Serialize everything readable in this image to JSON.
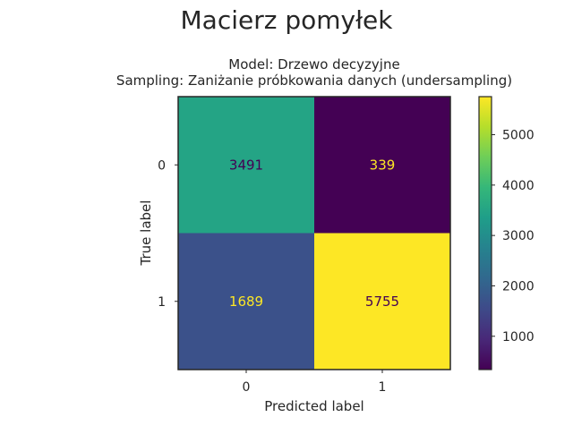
{
  "chart_data": {
    "type": "heatmap",
    "title": "Macierz pomyłek",
    "subtitle_lines": [
      "Model: Drzewo decyzyjne",
      "Sampling: Zaniżanie próbkowania danych (undersampling)"
    ],
    "xlabel": "Predicted label",
    "ylabel": "True label",
    "x_categories": [
      "0",
      "1"
    ],
    "y_categories": [
      "0",
      "1"
    ],
    "values": [
      [
        3491,
        339
      ],
      [
        1689,
        5755
      ]
    ],
    "colormap": "viridis",
    "colorbar": {
      "range": [
        339,
        5755
      ],
      "ticks": [
        1000,
        2000,
        3000,
        4000,
        5000
      ]
    },
    "label_colors": {
      "dark": "#440154",
      "light": "#fde725"
    }
  }
}
